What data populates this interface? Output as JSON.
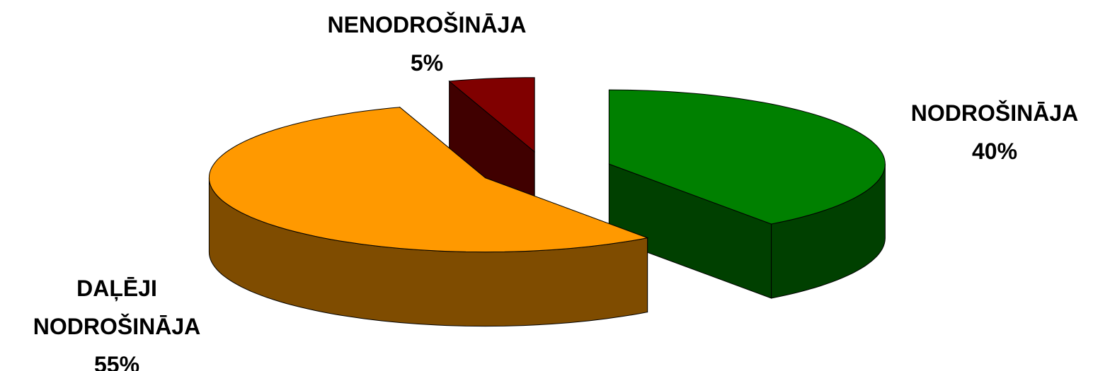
{
  "chart_data": {
    "type": "pie",
    "categories": [
      "NODROŠINĀJA",
      "DAĻĒJI NODROŠINĀJA",
      "NENODROŠINĀJA"
    ],
    "values": [
      40,
      55,
      5
    ],
    "value_labels": [
      "40%",
      "55%",
      "5%"
    ],
    "colors": [
      "#008000",
      "#ff9900",
      "#800000"
    ],
    "side_colors": [
      "#004000",
      "#7f4c00",
      "#400000"
    ]
  }
}
